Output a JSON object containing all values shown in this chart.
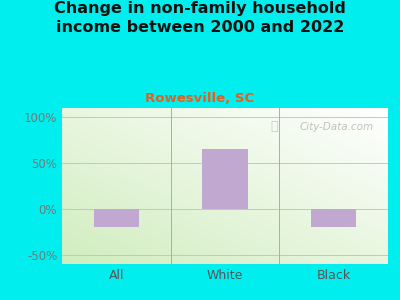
{
  "title": "Change in non-family household\nincome between 2000 and 2022",
  "subtitle": "Rowesville, SC",
  "categories": [
    "All",
    "White",
    "Black"
  ],
  "values": [
    -20,
    65,
    -20
  ],
  "bar_color": "#C0A8D0",
  "title_fontsize": 11.5,
  "subtitle_fontsize": 9.5,
  "subtitle_color": "#E06020",
  "title_color": "#111111",
  "ylim": [
    -60,
    110
  ],
  "yticks": [
    -50,
    0,
    50,
    100
  ],
  "yticklabels": [
    "-50%",
    "0%",
    "50%",
    "100%"
  ],
  "background_outer": "#00EEEE",
  "tick_color": "#777777",
  "grid_color": "#c8d8b8",
  "watermark": "City-Data.com"
}
